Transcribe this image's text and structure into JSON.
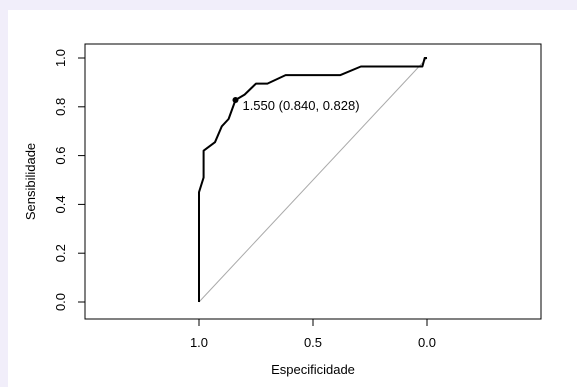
{
  "chart_data": {
    "type": "line",
    "title": "",
    "xlabel": "Especificidade",
    "ylabel": "Sensibilidade",
    "x_reversed": true,
    "xlim": [
      1.5,
      -0.5
    ],
    "ylim": [
      0,
      1
    ],
    "x_ticks": [
      1.0,
      0.5,
      0.0
    ],
    "x_tick_labels": [
      "1.0",
      "0.5",
      "0.0"
    ],
    "y_ticks": [
      0.0,
      0.2,
      0.4,
      0.6,
      0.8,
      1.0
    ],
    "y_tick_labels": [
      "0.0",
      "0.2",
      "0.4",
      "0.6",
      "0.8",
      "1.0"
    ],
    "grid": false,
    "series": [
      {
        "line_color": "#000000",
        "points": [
          [
            1.0,
            0.0
          ],
          [
            1.0,
            0.45
          ],
          [
            0.98,
            0.51
          ],
          [
            0.98,
            0.62
          ],
          [
            0.93,
            0.655
          ],
          [
            0.9,
            0.72
          ],
          [
            0.87,
            0.75
          ],
          [
            0.84,
            0.828
          ],
          [
            0.8,
            0.85
          ],
          [
            0.75,
            0.895
          ],
          [
            0.7,
            0.895
          ],
          [
            0.62,
            0.93
          ],
          [
            0.38,
            0.93
          ],
          [
            0.29,
            0.965
          ],
          [
            0.02,
            0.965
          ],
          [
            0.01,
            1.0
          ],
          [
            0.0,
            1.0
          ]
        ]
      }
    ],
    "reference_line": {
      "from": [
        1.0,
        0.0
      ],
      "to": [
        0.0,
        1.0
      ],
      "color": "#aaaaaa"
    },
    "threshold_point": {
      "x": 0.84,
      "y": 0.828,
      "label": "1.550 (0.840, 0.828)"
    }
  }
}
